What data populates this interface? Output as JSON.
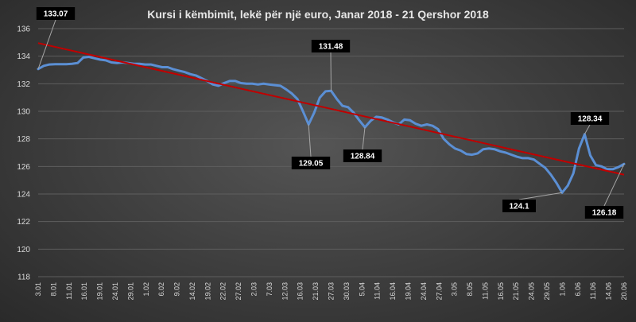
{
  "chart_data": {
    "type": "line",
    "title": "Kursi i këmbimit, lekë për një euro, Janar 2018 - 21 Qershor 2018",
    "xlabel": "",
    "ylabel": "",
    "ylim": [
      118,
      136
    ],
    "yticks": [
      118,
      120,
      122,
      124,
      126,
      128,
      130,
      132,
      134,
      136
    ],
    "grid": true,
    "legend": "none",
    "colors": {
      "series": "#5b8fd4",
      "trend": "#c00000",
      "annotation_bg": "#000000",
      "annotation_text": "#ffffff",
      "leader": "#a6a6a6"
    },
    "xtick_labels": [
      "3.01",
      "8.01",
      "11.01",
      "16.01",
      "19.01",
      "24.01",
      "29.01",
      "1.02",
      "6.02",
      "9.02",
      "14.02",
      "19.02",
      "22.02",
      "27.02",
      "2.03",
      "7.03",
      "12.03",
      "16.03",
      "21.03",
      "27.03",
      "30.03",
      "5.04",
      "11.04",
      "16.04",
      "19.04",
      "24.04",
      "27.04",
      "3.05",
      "8.05",
      "11.05",
      "16.05",
      "21.05",
      "24.05",
      "29.05",
      "1.06",
      "6.06",
      "11.06",
      "14.06",
      "20.06"
    ],
    "series": [
      {
        "values": [
          133.07,
          133.3,
          133.4,
          133.42,
          133.42,
          133.42,
          133.45,
          133.5,
          133.9,
          133.95,
          133.85,
          133.75,
          133.7,
          133.55,
          133.5,
          133.55,
          133.5,
          133.45,
          133.45,
          133.4,
          133.4,
          133.3,
          133.2,
          133.2,
          133.05,
          132.95,
          132.85,
          132.7,
          132.6,
          132.4,
          132.2,
          131.95,
          131.85,
          132.05,
          132.2,
          132.2,
          132.05,
          132.0,
          132.0,
          131.95,
          132.0,
          131.95,
          131.9,
          131.85,
          131.6,
          131.3,
          130.9,
          130.0,
          129.05,
          129.9,
          131.0,
          131.45,
          131.48,
          130.9,
          130.4,
          130.3,
          129.9,
          129.35,
          128.84,
          129.3,
          129.6,
          129.55,
          129.4,
          129.2,
          129.05,
          129.4,
          129.35,
          129.1,
          128.95,
          129.05,
          128.95,
          128.7,
          128.0,
          127.6,
          127.3,
          127.15,
          126.9,
          126.85,
          126.95,
          127.25,
          127.3,
          127.25,
          127.1,
          127.0,
          126.85,
          126.7,
          126.6,
          126.6,
          126.5,
          126.2,
          125.9,
          125.4,
          124.8,
          124.1,
          124.6,
          125.5,
          127.3,
          128.34,
          126.8,
          126.1,
          126.0,
          125.8,
          125.8,
          125.95,
          126.18
        ]
      }
    ],
    "trendline": {
      "start": 134.95,
      "end": 125.4
    },
    "annotations": [
      {
        "label": "133.07",
        "point_index": 0
      },
      {
        "label": "131.48",
        "point_index": 52
      },
      {
        "label": "129.05",
        "point_index": 48
      },
      {
        "label": "128.84",
        "point_index": 58
      },
      {
        "label": "128.34",
        "point_index": 97
      },
      {
        "label": "124.1",
        "point_index": 93
      },
      {
        "label": "126.18",
        "point_index": 104
      }
    ]
  }
}
